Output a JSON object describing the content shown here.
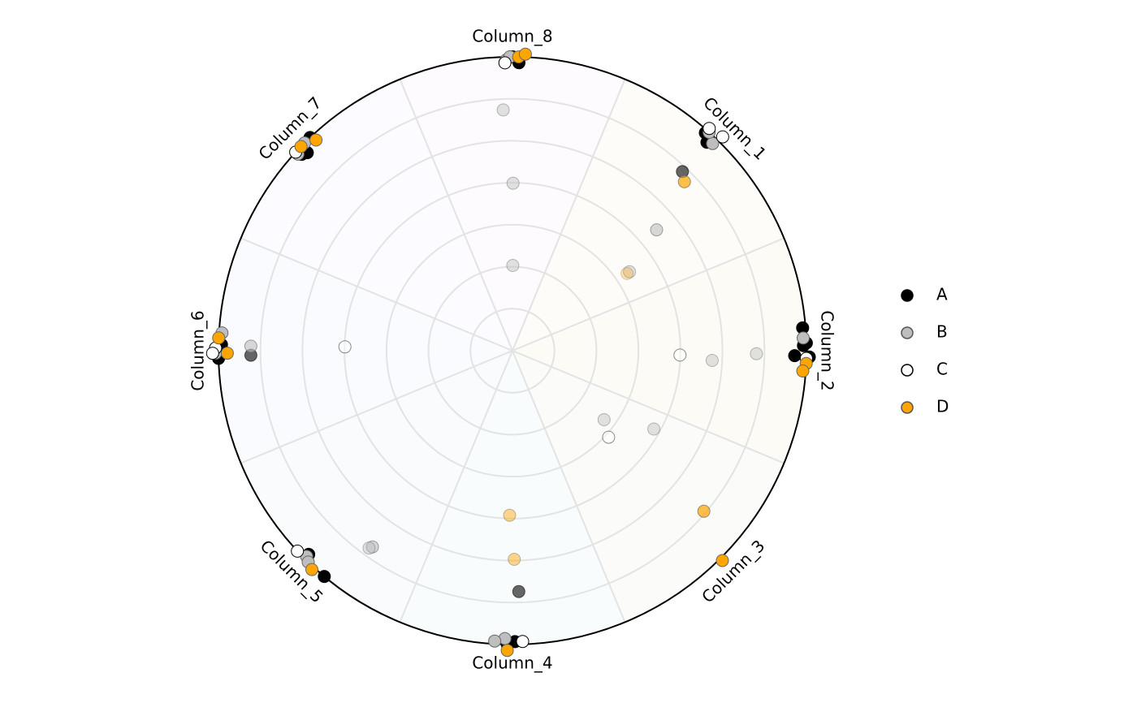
{
  "chart_data": {
    "type": "scatter",
    "coordinate_system": "polar",
    "title": "",
    "categories": [
      "Column_1",
      "Column_2",
      "Column_3",
      "Column_4",
      "Column_5",
      "Column_6",
      "Column_7",
      "Column_8"
    ],
    "sector_tints": [
      "#fdfcf8",
      "#fcfbf5",
      "#fbfbf9",
      "#f9fcfc",
      "#f9fbfd",
      "#f9fbfe",
      "#fcfbff",
      "#fdfbfe"
    ],
    "radial_range": [
      0,
      1
    ],
    "grid": true,
    "legend": {
      "position": "right",
      "entries": [
        {
          "name": "A",
          "fill": "#000000",
          "stroke": "#000000"
        },
        {
          "name": "B",
          "fill": "#bebebe",
          "stroke": "#555555"
        },
        {
          "name": "C",
          "fill": "#ffffff",
          "stroke": "#000000"
        },
        {
          "name": "D",
          "fill": "#ffa500",
          "stroke": "#555555"
        }
      ]
    },
    "series": [
      {
        "name": "A",
        "color": "#000000",
        "points": [
          {
            "theta": -1.5,
            "r": 1.0
          },
          {
            "theta": -4.5,
            "r": 0.99
          },
          {
            "theta": 1.2,
            "r": 1.01
          },
          {
            "theta": 89.5,
            "r": 0.99
          },
          {
            "theta": 88.5,
            "r": 0.82,
            "alpha": 0.6
          },
          {
            "theta": 91.0,
            "r": 1.0
          },
          {
            "theta": 129.8,
            "r": 1.0
          },
          {
            "theta": 135.0,
            "r": 0.98
          },
          {
            "theta": 178.5,
            "r": 1.0
          },
          {
            "theta": 181.2,
            "r": 0.99
          },
          {
            "theta": 179.0,
            "r": 0.89,
            "alpha": 0.6
          },
          {
            "theta": 223.0,
            "r": 0.98
          },
          {
            "theta": 226.5,
            "r": 1.0
          },
          {
            "theta": 224.0,
            "r": 0.97
          },
          {
            "theta": 270.0,
            "r": 1.0
          },
          {
            "theta": 271.3,
            "r": 0.98
          },
          {
            "theta": 311.5,
            "r": 0.99
          },
          {
            "theta": 313.0,
            "r": 0.97
          },
          {
            "theta": 313.5,
            "r": 0.84,
            "alpha": 0.6
          },
          {
            "theta": 359.0,
            "r": 0.99
          },
          {
            "theta": 1.0,
            "r": 0.96
          }
        ]
      },
      {
        "name": "B",
        "color": "#bebebe",
        "points": [
          {
            "theta": -2.5,
            "r": 0.99
          },
          {
            "theta": 91.5,
            "r": 0.98
          },
          {
            "theta": 93.5,
            "r": 0.99
          },
          {
            "theta": 0.7,
            "r": 0.83,
            "alpha": 0.45
          },
          {
            "theta": 2.8,
            "r": 0.68,
            "alpha": 0.45
          },
          {
            "theta": 125.5,
            "r": 0.82,
            "alpha": 0.6
          },
          {
            "theta": 126.0,
            "r": 0.83,
            "alpha": 0.45
          },
          {
            "theta": 135.0,
            "r": 0.99
          },
          {
            "theta": 134.0,
            "r": 1.0
          },
          {
            "theta": 181.0,
            "r": 0.89,
            "alpha": 0.6
          },
          {
            "theta": 183.5,
            "r": 0.99
          },
          {
            "theta": 179.5,
            "r": 1.01
          },
          {
            "theta": 225.0,
            "r": 1.0
          },
          {
            "theta": 222.5,
            "r": 0.99
          },
          {
            "theta": 268.8,
            "r": 0.99
          },
          {
            "theta": 267.8,
            "r": 0.82,
            "alpha": 0.45
          },
          {
            "theta": 269.5,
            "r": 1.0
          },
          {
            "theta": 270.2,
            "r": 0.57,
            "alpha": 0.45
          },
          {
            "theta": 270.2,
            "r": 0.29,
            "alpha": 0.45
          },
          {
            "theta": 314.0,
            "r": 0.98
          },
          {
            "theta": 312.0,
            "r": 1.0
          },
          {
            "theta": 320.0,
            "r": 0.64,
            "alpha": 0.6
          },
          {
            "theta": 326.0,
            "r": 0.48,
            "alpha": 0.45
          },
          {
            "theta": 29.0,
            "r": 0.55,
            "alpha": 0.45
          },
          {
            "theta": 37.0,
            "r": 0.39,
            "alpha": 0.45
          }
        ]
      },
      {
        "name": "C",
        "color": "#ffffff",
        "points": [
          {
            "theta": 1.5,
            "r": 1.0
          },
          {
            "theta": 88.0,
            "r": 0.99
          },
          {
            "theta": 137.0,
            "r": 1.0
          },
          {
            "theta": 180.5,
            "r": 1.01
          },
          {
            "theta": 181.3,
            "r": 0.57,
            "alpha": 0.45
          },
          {
            "theta": 179.5,
            "r": 1.02
          },
          {
            "theta": 222.5,
            "r": 1.0
          },
          {
            "theta": 268.5,
            "r": 0.98
          },
          {
            "theta": 311.5,
            "r": 1.01
          },
          {
            "theta": 314.5,
            "r": 1.02
          },
          {
            "theta": 1.5,
            "r": 0.57,
            "alpha": 0.45
          },
          {
            "theta": 42.0,
            "r": 0.44,
            "alpha": 0.45
          }
        ]
      },
      {
        "name": "D",
        "color": "#ffa500",
        "points": [
          {
            "theta": 2.5,
            "r": 1.0
          },
          {
            "theta": 4.0,
            "r": 0.99
          },
          {
            "theta": 45.0,
            "r": 1.01
          },
          {
            "theta": 40.0,
            "r": 0.85,
            "alpha": 0.7
          },
          {
            "theta": 91.0,
            "r": 1.02
          },
          {
            "theta": 89.5,
            "r": 0.71,
            "alpha": 0.45
          },
          {
            "theta": 91.0,
            "r": 0.56,
            "alpha": 0.45
          },
          {
            "theta": 132.5,
            "r": 1.01
          },
          {
            "theta": 179.5,
            "r": 0.97
          },
          {
            "theta": 182.5,
            "r": 1.0
          },
          {
            "theta": 227.0,
            "r": 0.98
          },
          {
            "theta": 224.0,
            "r": 1.0
          },
          {
            "theta": 271.2,
            "r": 1.0
          },
          {
            "theta": 272.5,
            "r": 1.01
          },
          {
            "theta": 315.5,
            "r": 0.82,
            "alpha": 0.7
          },
          {
            "theta": 326.0,
            "r": 0.47,
            "alpha": 0.3
          }
        ]
      }
    ]
  }
}
